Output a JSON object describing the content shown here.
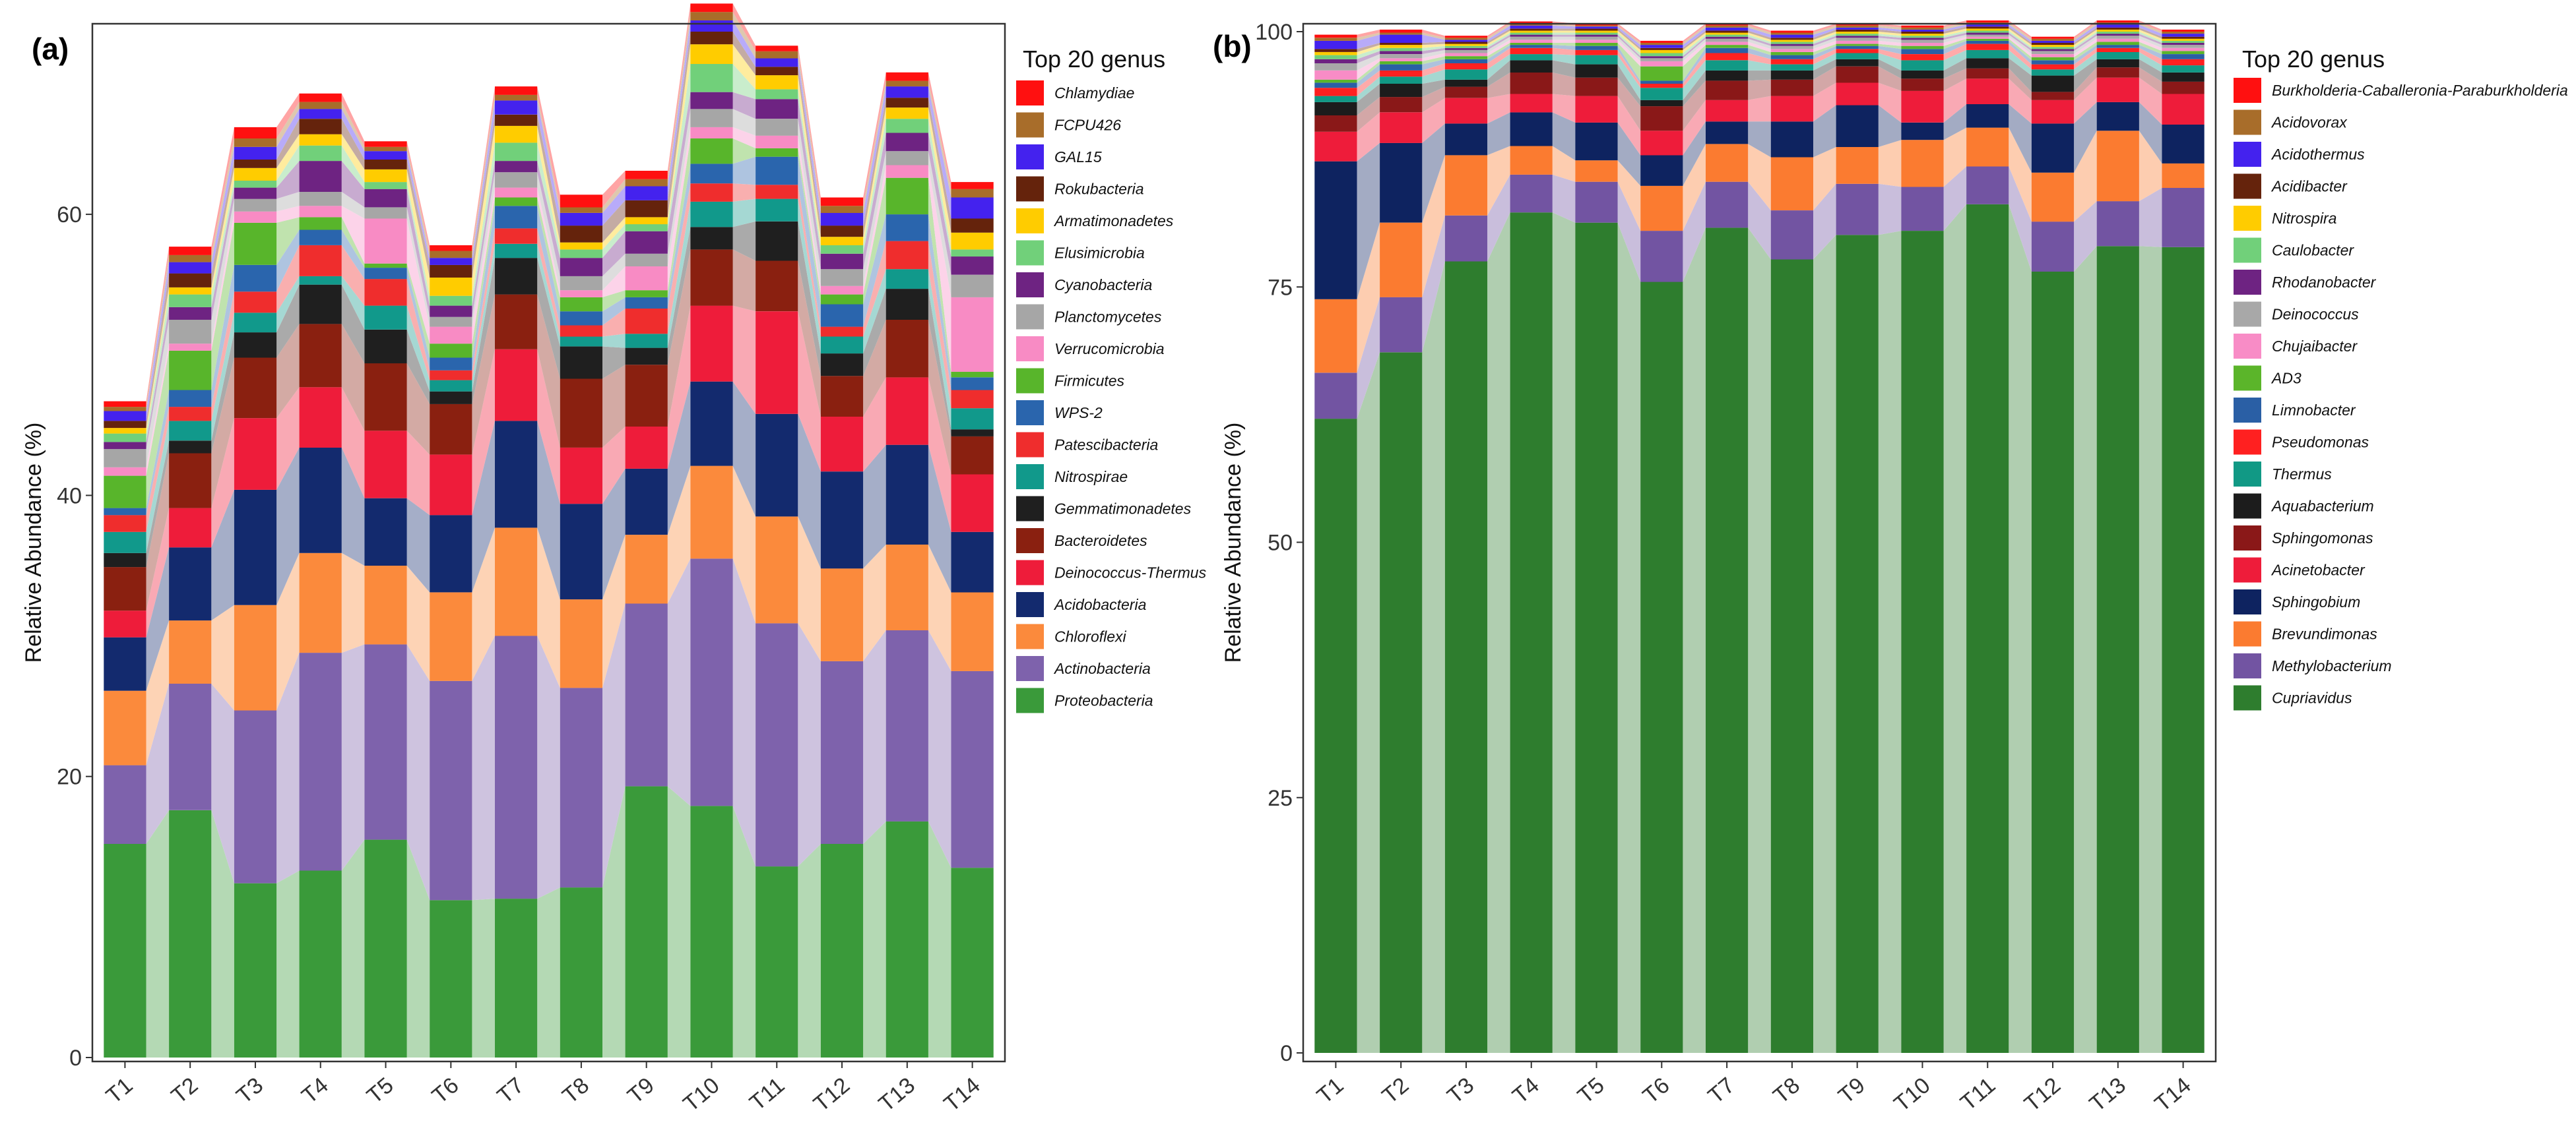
{
  "chart_data": [
    {
      "type": "bar",
      "stacked": true,
      "panel_label": "(a)",
      "ylabel": "Relative Abundance (%)",
      "ylim": [
        0,
        73
      ],
      "yticks": [
        0,
        20,
        40,
        60
      ],
      "legend_title": "Top 20 genus",
      "categories": [
        "T1",
        "T2",
        "T3",
        "T4",
        "T5",
        "T6",
        "T7",
        "T8",
        "T9",
        "T10",
        "T11",
        "T12",
        "T13",
        "T14"
      ],
      "series": [
        {
          "name": "Proteobacteria",
          "color": "#3a9a3a",
          "values": [
            15.2,
            17.6,
            12.4,
            13.3,
            15.5,
            11.2,
            11.3,
            12.1,
            19.3,
            17.9,
            13.6,
            15.2,
            16.8,
            13.5
          ]
        },
        {
          "name": "Actinobacteria",
          "color": "#7e62ac",
          "values": [
            5.6,
            9.0,
            12.3,
            15.5,
            13.9,
            15.6,
            18.7,
            14.2,
            13.0,
            17.6,
            17.3,
            13.0,
            13.6,
            14.0
          ]
        },
        {
          "name": "Chloroflexi",
          "color": "#fb8a3c",
          "values": [
            5.3,
            4.5,
            7.5,
            7.1,
            5.6,
            6.3,
            7.7,
            6.3,
            4.9,
            6.6,
            7.6,
            6.6,
            6.1,
            5.6
          ]
        },
        {
          "name": "Acidobacteria",
          "color": "#132a6e",
          "values": [
            3.8,
            5.2,
            8.2,
            7.5,
            4.8,
            5.5,
            7.6,
            6.8,
            4.7,
            6.0,
            7.3,
            6.9,
            7.1,
            4.3
          ]
        },
        {
          "name": "Deinococcus-Thermus",
          "color": "#ee1c3a",
          "values": [
            1.9,
            2.8,
            5.1,
            4.3,
            4.8,
            4.3,
            5.1,
            4.0,
            3.0,
            5.4,
            7.3,
            3.9,
            4.8,
            4.1
          ]
        },
        {
          "name": "Bacteroidetes",
          "color": "#8a2010",
          "values": [
            3.1,
            3.9,
            4.3,
            4.5,
            4.8,
            3.6,
            3.9,
            4.9,
            4.4,
            4.0,
            3.6,
            2.9,
            4.1,
            2.7
          ]
        },
        {
          "name": "Gemmatimonadetes",
          "color": "#1f1f1f",
          "values": [
            1.0,
            0.9,
            1.8,
            2.8,
            2.4,
            0.9,
            2.6,
            2.3,
            1.2,
            1.6,
            2.8,
            1.6,
            2.2,
            0.5
          ]
        },
        {
          "name": "Nitrospirae",
          "color": "#11998b",
          "values": [
            1.5,
            1.4,
            1.4,
            0.6,
            1.7,
            0.8,
            1.0,
            0.7,
            1.0,
            1.8,
            1.6,
            1.2,
            1.4,
            1.5
          ]
        },
        {
          "name": "Patescibacteria",
          "color": "#ef2d2d",
          "values": [
            1.2,
            1.0,
            1.5,
            2.2,
            1.9,
            0.7,
            1.1,
            0.8,
            1.8,
            1.3,
            1.0,
            0.7,
            2.0,
            1.3
          ]
        },
        {
          "name": "WPS-2",
          "color": "#2a65ad",
          "values": [
            0.5,
            1.2,
            1.9,
            1.1,
            0.8,
            0.9,
            1.6,
            1.0,
            0.8,
            1.4,
            2.0,
            1.6,
            1.9,
            0.9
          ]
        },
        {
          "name": "Firmicutes",
          "color": "#58b52b",
          "values": [
            2.3,
            2.8,
            3.0,
            0.9,
            0.3,
            1.0,
            0.6,
            1.0,
            0.5,
            1.8,
            0.6,
            0.7,
            2.6,
            0.4
          ]
        },
        {
          "name": "Verrucomicrobia",
          "color": "#f88bc4",
          "values": [
            0.6,
            0.5,
            0.8,
            0.8,
            3.2,
            1.2,
            0.7,
            0.5,
            1.7,
            0.8,
            0.9,
            0.6,
            0.9,
            5.3
          ]
        },
        {
          "name": "Planctomycetes",
          "color": "#a6a6a6",
          "values": [
            1.3,
            1.7,
            0.9,
            1.0,
            0.8,
            0.7,
            1.1,
            1.0,
            0.9,
            1.3,
            1.2,
            1.2,
            1.0,
            1.6
          ]
        },
        {
          "name": "Cyanobacteria",
          "color": "#6e2382",
          "values": [
            0.5,
            0.9,
            0.8,
            2.2,
            1.3,
            0.8,
            0.8,
            1.3,
            1.6,
            1.2,
            1.4,
            1.1,
            1.3,
            1.3
          ]
        },
        {
          "name": "Elusimicrobia",
          "color": "#71d07a",
          "values": [
            0.6,
            0.9,
            0.5,
            1.1,
            0.5,
            0.7,
            1.3,
            0.6,
            0.5,
            2.0,
            0.7,
            0.6,
            1.0,
            0.5
          ]
        },
        {
          "name": "Armatimonadetes",
          "color": "#ffcc00",
          "values": [
            0.4,
            0.5,
            0.9,
            0.8,
            0.9,
            1.3,
            1.2,
            0.5,
            0.5,
            1.4,
            1.0,
            0.6,
            0.8,
            1.2
          ]
        },
        {
          "name": "Rokubacteria",
          "color": "#65230c",
          "values": [
            0.5,
            1.0,
            0.6,
            1.1,
            0.7,
            0.9,
            0.8,
            1.2,
            1.2,
            0.9,
            0.6,
            0.8,
            0.7,
            1.0
          ]
        },
        {
          "name": "GAL15",
          "color": "#4422ee",
          "values": [
            0.7,
            0.8,
            0.9,
            0.7,
            0.6,
            0.5,
            1.0,
            0.9,
            1.0,
            0.8,
            0.6,
            0.9,
            0.8,
            1.5
          ]
        },
        {
          "name": "FCPU426",
          "color": "#a86d2a",
          "values": [
            0.3,
            0.5,
            0.6,
            0.5,
            0.3,
            0.5,
            0.4,
            0.4,
            0.5,
            0.6,
            0.5,
            0.5,
            0.4,
            0.6
          ]
        },
        {
          "name": "Chlamydiae",
          "color": "#ff1010",
          "values": [
            0.4,
            0.6,
            0.8,
            0.6,
            0.4,
            0.4,
            0.6,
            0.9,
            0.6,
            0.6,
            0.4,
            0.6,
            0.6,
            0.5
          ]
        }
      ]
    },
    {
      "type": "bar",
      "stacked": true,
      "panel_label": "(b)",
      "ylabel": "Relative Abundance (%)",
      "ylim": [
        0,
        100
      ],
      "yticks": [
        0,
        25,
        50,
        75,
        100
      ],
      "legend_title": "Top 20 genus",
      "categories": [
        "T1",
        "T2",
        "T3",
        "T4",
        "T5",
        "T6",
        "T7",
        "T8",
        "T9",
        "T10",
        "T11",
        "T12",
        "T13",
        "T14"
      ],
      "series": [
        {
          "name": "Cupriavidus",
          "color": "#2e7d2e",
          "values": [
            62.1,
            68.6,
            77.5,
            82.3,
            81.3,
            75.5,
            80.8,
            77.7,
            80.1,
            80.5,
            83.1,
            76.5,
            79.0,
            78.9
          ]
        },
        {
          "name": "Methylobacterium",
          "color": "#7254a2",
          "values": [
            4.5,
            5.4,
            4.5,
            3.7,
            4.0,
            5.0,
            4.5,
            4.8,
            5.0,
            4.3,
            3.7,
            4.9,
            4.4,
            5.8
          ]
        },
        {
          "name": "Brevundimonas",
          "color": "#fb7b30",
          "values": [
            7.2,
            7.3,
            5.9,
            2.8,
            2.1,
            4.4,
            3.7,
            5.2,
            3.6,
            4.6,
            3.8,
            4.8,
            6.9,
            2.4
          ]
        },
        {
          "name": "Sphingobium",
          "color": "#0e2360",
          "values": [
            13.5,
            7.8,
            3.1,
            3.3,
            3.7,
            3.0,
            2.2,
            3.5,
            4.1,
            1.7,
            2.3,
            4.8,
            2.8,
            3.8
          ]
        },
        {
          "name": "Acinetobacter",
          "color": "#ee1c3a",
          "values": [
            2.9,
            3.0,
            2.5,
            1.8,
            2.6,
            2.4,
            2.1,
            2.5,
            2.2,
            3.1,
            2.5,
            2.3,
            2.4,
            3.0
          ]
        },
        {
          "name": "Sphingomonas",
          "color": "#8a1818",
          "values": [
            1.6,
            1.5,
            1.1,
            2.1,
            1.8,
            2.4,
            1.9,
            1.6,
            1.6,
            1.2,
            1.0,
            0.8,
            1.0,
            1.2
          ]
        },
        {
          "name": "Aquabacterium",
          "color": "#1c1c1c",
          "values": [
            1.3,
            1.3,
            0.7,
            1.2,
            1.3,
            0.6,
            1.0,
            0.9,
            0.7,
            0.8,
            1.0,
            1.6,
            0.8,
            0.9
          ]
        },
        {
          "name": "Thermus",
          "color": "#119985",
          "values": [
            0.6,
            0.7,
            1.0,
            0.6,
            0.9,
            1.2,
            1.0,
            0.6,
            0.6,
            1.0,
            0.8,
            0.6,
            0.7,
            0.7
          ]
        },
        {
          "name": "Pseudomonas",
          "color": "#ff2020",
          "values": [
            0.8,
            0.6,
            0.6,
            0.6,
            0.5,
            0.4,
            0.7,
            0.5,
            0.4,
            0.6,
            0.6,
            0.5,
            0.4,
            0.6
          ]
        },
        {
          "name": "Limnobacter",
          "color": "#2a5fa5",
          "values": [
            0.5,
            0.6,
            0.4,
            0.3,
            0.4,
            0.3,
            0.5,
            0.4,
            0.3,
            0.5,
            0.3,
            0.4,
            0.3,
            0.5
          ]
        },
        {
          "name": "AD3",
          "color": "#5bb52a",
          "values": [
            0.3,
            0.3,
            0.3,
            0.2,
            0.3,
            1.4,
            0.3,
            0.3,
            0.2,
            0.3,
            0.2,
            0.3,
            0.3,
            0.3
          ]
        },
        {
          "name": "Chujaibacter",
          "color": "#f88cc6",
          "values": [
            0.9,
            0.3,
            0.3,
            0.3,
            0.3,
            0.5,
            0.3,
            0.3,
            0.3,
            0.3,
            0.2,
            0.3,
            0.3,
            0.3
          ]
        },
        {
          "name": "Deinococcus",
          "color": "#a8a8a8",
          "values": [
            0.7,
            0.4,
            0.3,
            0.3,
            0.3,
            0.3,
            0.3,
            0.3,
            0.3,
            0.3,
            0.2,
            0.3,
            0.3,
            0.3
          ]
        },
        {
          "name": "Rhodanobacter",
          "color": "#6e2382",
          "values": [
            0.4,
            0.3,
            0.2,
            0.2,
            0.2,
            0.2,
            0.2,
            0.2,
            0.2,
            0.2,
            0.2,
            0.2,
            0.2,
            0.2
          ]
        },
        {
          "name": "Caulobacter",
          "color": "#71d07a",
          "values": [
            0.4,
            0.3,
            0.2,
            0.2,
            0.2,
            0.3,
            0.2,
            0.2,
            0.2,
            0.2,
            0.2,
            0.2,
            0.2,
            0.2
          ]
        },
        {
          "name": "Nitrospira",
          "color": "#ffcc00",
          "values": [
            0.3,
            0.3,
            0.2,
            0.2,
            0.2,
            0.3,
            0.2,
            0.2,
            0.2,
            0.2,
            0.2,
            0.2,
            0.2,
            0.2
          ]
        },
        {
          "name": "Acidibacter",
          "color": "#65230c",
          "values": [
            0.3,
            0.2,
            0.2,
            0.2,
            0.2,
            0.2,
            0.2,
            0.2,
            0.2,
            0.2,
            0.2,
            0.2,
            0.2,
            0.2
          ]
        },
        {
          "name": "Acidothermus",
          "color": "#4422ee",
          "values": [
            0.8,
            0.8,
            0.2,
            0.3,
            0.2,
            0.3,
            0.3,
            0.3,
            0.2,
            0.2,
            0.2,
            0.2,
            0.3,
            0.3
          ]
        },
        {
          "name": "Acidovorax",
          "color": "#a86d2a",
          "values": [
            0.3,
            0.2,
            0.2,
            0.2,
            0.1,
            0.2,
            0.2,
            0.2,
            0.2,
            0.2,
            0.2,
            0.2,
            0.2,
            0.2
          ]
        },
        {
          "name": "Burkholderia-Caballeronia-Paraburkholderia",
          "color": "#ff1010",
          "values": [
            0.3,
            0.3,
            0.2,
            0.2,
            0.2,
            0.2,
            0.2,
            0.2,
            0.2,
            0.2,
            0.2,
            0.2,
            0.2,
            0.2
          ]
        }
      ]
    }
  ]
}
